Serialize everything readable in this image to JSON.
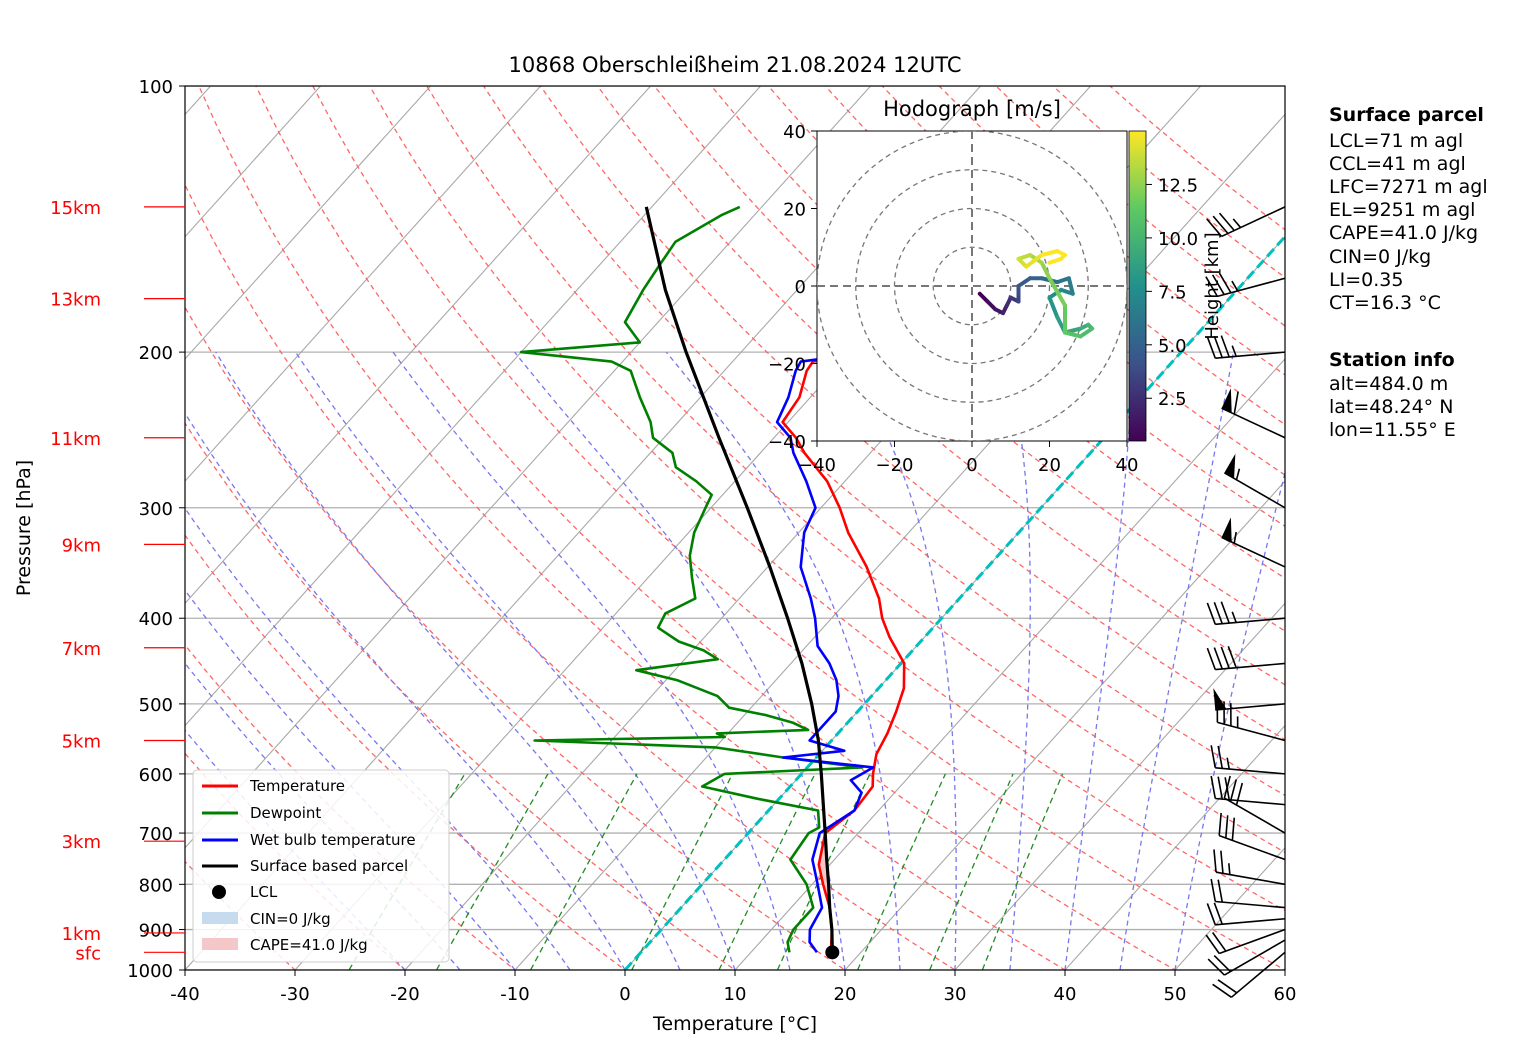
{
  "chart_data": {
    "type": "line",
    "title": "10868 Oberschleißheim 21.08.2024 12UTC",
    "xlabel": "Temperature [°C]",
    "ylabel": "Pressure [hPa]",
    "xlim": [
      -40,
      60
    ],
    "ylim": [
      1000,
      100
    ],
    "y_log_scale": true,
    "skew_t": true,
    "x_ticks": [
      -40,
      -30,
      -20,
      -10,
      0,
      10,
      20,
      30,
      40,
      50,
      60
    ],
    "y_ticks": [
      1000,
      900,
      800,
      700,
      600,
      500,
      400,
      300,
      200,
      100
    ],
    "height_labels": [
      {
        "label": "sfc",
        "p": 955
      },
      {
        "label": "1km",
        "p": 908
      },
      {
        "label": "3km",
        "p": 715
      },
      {
        "label": "5km",
        "p": 550
      },
      {
        "label": "7km",
        "p": 432
      },
      {
        "label": "9km",
        "p": 330
      },
      {
        "label": "11km",
        "p": 250
      },
      {
        "label": "13km",
        "p": 174
      },
      {
        "label": "15km",
        "p": 137
      }
    ],
    "colors": {
      "temperature": "#ff0000",
      "dewpoint": "#008000",
      "wetbulb": "#0000ff",
      "parcel": "#000000",
      "dry_adiabat": "#ff6666",
      "moist_adiabat": "#7777ee",
      "mixing_ratio": "#228b22",
      "freezing": "#00bfbf",
      "cape_fill": "#f4c8c8",
      "cin_fill": "#c6dcee"
    },
    "series": [
      {
        "name": "Temperature",
        "points": [
          [
            955,
            17.5
          ],
          [
            940,
            16.8
          ],
          [
            900,
            15.5
          ],
          [
            850,
            13.5
          ],
          [
            800,
            11.0
          ],
          [
            760,
            9.0
          ],
          [
            700,
            7.0
          ],
          [
            660,
            7.8
          ],
          [
            620,
            7.5
          ],
          [
            600,
            6.5
          ],
          [
            570,
            5.2
          ],
          [
            540,
            4.5
          ],
          [
            510,
            3.5
          ],
          [
            480,
            2.3
          ],
          [
            450,
            0.3
          ],
          [
            420,
            -3.2
          ],
          [
            400,
            -5.4
          ],
          [
            380,
            -7.3
          ],
          [
            350,
            -11.0
          ],
          [
            320,
            -15.5
          ],
          [
            300,
            -18.3
          ],
          [
            280,
            -21.6
          ],
          [
            260,
            -26.0
          ],
          [
            250,
            -28.0
          ],
          [
            240,
            -30.5
          ],
          [
            225,
            -31.0
          ],
          [
            210,
            -32.5
          ],
          [
            205,
            -32.7
          ],
          [
            200,
            -27.0
          ],
          [
            195,
            -21.5
          ],
          [
            190,
            -21.0
          ],
          [
            175,
            -21.0
          ],
          [
            165,
            -21.0
          ],
          [
            155,
            -20.5
          ],
          [
            145,
            -20.0
          ],
          [
            137,
            -18.2
          ]
        ]
      },
      {
        "name": "Dewpoint",
        "points": [
          [
            955,
            13.5
          ],
          [
            930,
            12.5
          ],
          [
            900,
            12.0
          ],
          [
            850,
            12.0
          ],
          [
            800,
            9.5
          ],
          [
            750,
            6.0
          ],
          [
            700,
            5.5
          ],
          [
            690,
            6.0
          ],
          [
            660,
            4.5
          ],
          [
            640,
            -2.0
          ],
          [
            620,
            -8.0
          ],
          [
            600,
            -7.0
          ],
          [
            590,
            5.0
          ],
          [
            575,
            -3.0
          ],
          [
            560,
            -10.0
          ],
          [
            550,
            -27.0
          ],
          [
            545,
            -10.0
          ],
          [
            540,
            -11.0
          ],
          [
            535,
            -3.0
          ],
          [
            525,
            -5.0
          ],
          [
            515,
            -8.0
          ],
          [
            505,
            -12.0
          ],
          [
            490,
            -14.0
          ],
          [
            470,
            -19.0
          ],
          [
            458,
            -23.5
          ],
          [
            445,
            -17.0
          ],
          [
            435,
            -19.0
          ],
          [
            425,
            -22.0
          ],
          [
            410,
            -25.0
          ],
          [
            395,
            -25.5
          ],
          [
            380,
            -24.0
          ],
          [
            360,
            -26.0
          ],
          [
            340,
            -28.0
          ],
          [
            320,
            -29.5
          ],
          [
            300,
            -30.5
          ],
          [
            290,
            -31.0
          ],
          [
            280,
            -33.5
          ],
          [
            270,
            -36.5
          ],
          [
            260,
            -38.0
          ],
          [
            250,
            -41.0
          ],
          [
            240,
            -42.5
          ],
          [
            225,
            -45.5
          ],
          [
            210,
            -48.5
          ],
          [
            205,
            -51.0
          ],
          [
            200,
            -60.0
          ],
          [
            195,
            -50.0
          ],
          [
            185,
            -53.0
          ],
          [
            170,
            -54.0
          ],
          [
            160,
            -54.5
          ],
          [
            150,
            -55.0
          ],
          [
            140,
            -53.0
          ],
          [
            137,
            -52.0
          ]
        ]
      },
      {
        "name": "Wet bulb temperature",
        "points": [
          [
            955,
            16.0
          ],
          [
            930,
            14.5
          ],
          [
            900,
            13.5
          ],
          [
            850,
            12.8
          ],
          [
            800,
            10.5
          ],
          [
            750,
            8.0
          ],
          [
            700,
            6.5
          ],
          [
            660,
            7.8
          ],
          [
            630,
            7.0
          ],
          [
            610,
            5.0
          ],
          [
            590,
            6.0
          ],
          [
            575,
            -3.0
          ],
          [
            565,
            2.0
          ],
          [
            550,
            -2.0
          ],
          [
            530,
            -2.0
          ],
          [
            510,
            -2.0
          ],
          [
            490,
            -3.0
          ],
          [
            470,
            -4.5
          ],
          [
            450,
            -6.5
          ],
          [
            430,
            -9.0
          ],
          [
            400,
            -11.5
          ],
          [
            380,
            -13.5
          ],
          [
            350,
            -17.0
          ],
          [
            320,
            -19.5
          ],
          [
            300,
            -20.5
          ],
          [
            280,
            -23.5
          ],
          [
            260,
            -27.0
          ],
          [
            250,
            -28.5
          ],
          [
            240,
            -31.0
          ],
          [
            225,
            -32.0
          ],
          [
            210,
            -33.5
          ],
          [
            205,
            -33.8
          ],
          [
            200,
            -28.0
          ],
          [
            195,
            -22.0
          ],
          [
            190,
            -21.5
          ],
          [
            175,
            -21.5
          ],
          [
            165,
            -21.5
          ],
          [
            155,
            -21.0
          ],
          [
            145,
            -20.5
          ],
          [
            137,
            -18.7
          ]
        ]
      },
      {
        "name": "Surface based parcel",
        "points": [
          [
            955,
            17.4
          ],
          [
            900,
            15.5
          ],
          [
            850,
            13.5
          ],
          [
            800,
            11.5
          ],
          [
            750,
            9.3
          ],
          [
            700,
            7.0
          ],
          [
            650,
            4.5
          ],
          [
            600,
            1.8
          ],
          [
            550,
            -1.2
          ],
          [
            500,
            -4.8
          ],
          [
            450,
            -9.0
          ],
          [
            400,
            -14.0
          ],
          [
            350,
            -19.8
          ],
          [
            300,
            -26.7
          ],
          [
            250,
            -35.0
          ],
          [
            200,
            -45.0
          ],
          [
            170,
            -52.0
          ],
          [
            137,
            -60.5
          ]
        ]
      }
    ],
    "lcl": {
      "p": 955,
      "t": 17.4
    },
    "freezing_level": {
      "p_surface": 1000,
      "label": "0 °C isotherm"
    },
    "legend": {
      "placement": "lower-left",
      "entries": [
        "Temperature",
        "Dewpoint",
        "Wet bulb temperature",
        "Surface based parcel",
        "LCL",
        "CIN=0 J/kg",
        "CAPE=41.0 J/kg"
      ]
    },
    "winds": [
      {
        "p": 955,
        "dir": 230,
        "kt": 18
      },
      {
        "p": 925,
        "dir": 240,
        "kt": 20
      },
      {
        "p": 900,
        "dir": 250,
        "kt": 20
      },
      {
        "p": 875,
        "dir": 265,
        "kt": 22
      },
      {
        "p": 850,
        "dir": 275,
        "kt": 22
      },
      {
        "p": 800,
        "dir": 280,
        "kt": 25
      },
      {
        "p": 750,
        "dir": 290,
        "kt": 30
      },
      {
        "p": 700,
        "dir": 300,
        "kt": 30
      },
      {
        "p": 650,
        "dir": 275,
        "kt": 30
      },
      {
        "p": 600,
        "dir": 275,
        "kt": 25
      },
      {
        "p": 550,
        "dir": 285,
        "kt": 35
      },
      {
        "p": 500,
        "dir": 265,
        "kt": 50
      },
      {
        "p": 450,
        "dir": 265,
        "kt": 40
      },
      {
        "p": 400,
        "dir": 265,
        "kt": 35
      },
      {
        "p": 350,
        "dir": 295,
        "kt": 55
      },
      {
        "p": 300,
        "dir": 300,
        "kt": 55
      },
      {
        "p": 250,
        "dir": 295,
        "kt": 60
      },
      {
        "p": 200,
        "dir": 265,
        "kt": 35
      },
      {
        "p": 165,
        "dir": 255,
        "kt": 35
      },
      {
        "p": 137,
        "dir": 245,
        "kt": 35
      }
    ],
    "hodograph": {
      "title": "Hodograph [m/s]",
      "xlim": [
        -40,
        40
      ],
      "ylim": [
        -40,
        40
      ],
      "ticks": [
        -40,
        -20,
        0,
        20,
        40
      ],
      "rings": [
        10,
        20,
        30,
        40
      ],
      "colorbar_label": "Height [km]",
      "colorbar_ticks": [
        "2.5",
        "5.0",
        "7.5",
        "10.0",
        "12.5"
      ],
      "height_range": [
        0.5,
        15
      ],
      "path": [
        [
          2,
          -2,
          0.5
        ],
        [
          4,
          -4,
          1.0
        ],
        [
          6,
          -6,
          1.5
        ],
        [
          8,
          -7,
          2.0
        ],
        [
          9,
          -5,
          2.5
        ],
        [
          10,
          -3,
          3.0
        ],
        [
          12,
          -4,
          3.5
        ],
        [
          12,
          -2,
          4.0
        ],
        [
          12,
          0,
          4.5
        ],
        [
          15,
          2,
          5.0
        ],
        [
          18,
          2,
          5.5
        ],
        [
          22,
          1,
          6.0
        ],
        [
          25,
          2,
          6.5
        ],
        [
          26,
          -2,
          7.0
        ],
        [
          23,
          -1,
          7.5
        ],
        [
          20,
          -3,
          8.0
        ],
        [
          22,
          -8,
          8.5
        ],
        [
          24,
          -12,
          9.0
        ],
        [
          28,
          -11,
          9.5
        ],
        [
          30,
          -10,
          10.0
        ],
        [
          31,
          -11,
          10.5
        ],
        [
          28,
          -13,
          11.0
        ],
        [
          24,
          -12,
          11.5
        ],
        [
          24,
          -5,
          12.0
        ],
        [
          20,
          2,
          12.5
        ],
        [
          18,
          6,
          13.0
        ],
        [
          15,
          8,
          13.5
        ],
        [
          12,
          7,
          14.0
        ],
        [
          14,
          5,
          14.5
        ],
        [
          18,
          8,
          15.0
        ],
        [
          22,
          9,
          15.0
        ],
        [
          24,
          8,
          15.0
        ],
        [
          23,
          7,
          15.0
        ],
        [
          20,
          6,
          15.0
        ]
      ]
    },
    "surface_parcel": {
      "title": "Surface parcel",
      "lines": [
        "LCL=71 m agl",
        "CCL=41 m agl",
        "LFC=7271 m agl",
        "EL=9251 m agl",
        "CAPE=41.0 J/kg",
        "CIN=0 J/kg",
        "LI=0.35",
        "CT=16.3 °C"
      ]
    },
    "station_info": {
      "title": "Station info",
      "lines": [
        "alt=484.0 m",
        "lat=48.24° N",
        "lon=11.55° E"
      ]
    }
  }
}
